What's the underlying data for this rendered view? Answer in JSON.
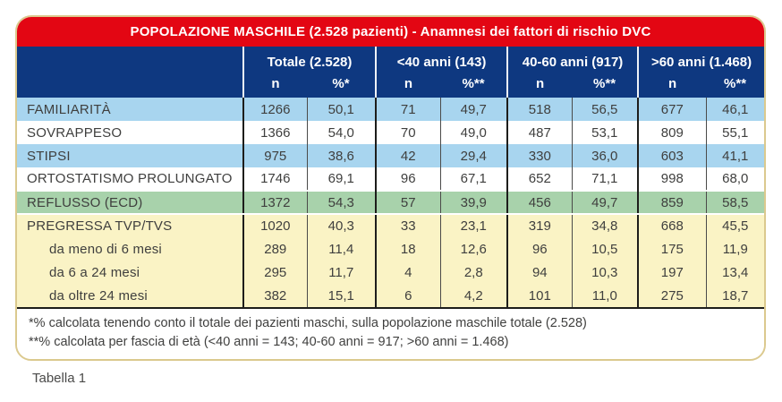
{
  "title_bar": {
    "text": "POPOLAZIONE MASCHILE (2.528 pazienti) - Anamnesi dei fattori di rischio DVC"
  },
  "table": {
    "column_groups": [
      {
        "label": "Totale (2.528)",
        "sub": [
          "n",
          "%*"
        ]
      },
      {
        "label": "<40 anni (143)",
        "sub": [
          "n",
          "%**"
        ]
      },
      {
        "label": "40-60 anni (917)",
        "sub": [
          "n",
          "%**"
        ]
      },
      {
        "label": ">60 anni (1.468)",
        "sub": [
          "n",
          "%**"
        ]
      }
    ],
    "rows": [
      {
        "label": "FAMILIARITÀ",
        "indent": false,
        "style": "blue",
        "values": [
          "1266",
          "50,1",
          "71",
          "49,7",
          "518",
          "56,5",
          "677",
          "46,1"
        ]
      },
      {
        "label": "SOVRAPPESO",
        "indent": false,
        "style": "white",
        "values": [
          "1366",
          "54,0",
          "70",
          "49,0",
          "487",
          "53,1",
          "809",
          "55,1"
        ]
      },
      {
        "label": "STIPSI",
        "indent": false,
        "style": "blue",
        "values": [
          "975",
          "38,6",
          "42",
          "29,4",
          "330",
          "36,0",
          "603",
          "41,1"
        ]
      },
      {
        "label": "ORTOSTATISMO PROLUNGATO",
        "indent": false,
        "style": "white",
        "values": [
          "1746",
          "69,1",
          "96",
          "67,1",
          "652",
          "71,1",
          "998",
          "68,0"
        ]
      },
      {
        "label": "REFLUSSO (ECD)",
        "indent": false,
        "style": "green",
        "values": [
          "1372",
          "54,3",
          "57",
          "39,9",
          "456",
          "49,7",
          "859",
          "58,5"
        ]
      },
      {
        "label": "PREGRESSA TVP/TVS",
        "indent": false,
        "style": "yellow",
        "values": [
          "1020",
          "40,3",
          "33",
          "23,1",
          "319",
          "34,8",
          "668",
          "45,5"
        ]
      },
      {
        "label": "da meno di 6 mesi",
        "indent": true,
        "style": "yellow",
        "values": [
          "289",
          "11,4",
          "18",
          "12,6",
          "96",
          "10,5",
          "175",
          "11,9"
        ]
      },
      {
        "label": "da 6 a 24 mesi",
        "indent": true,
        "style": "yellow",
        "values": [
          "295",
          "11,7",
          "4",
          "2,8",
          "94",
          "10,3",
          "197",
          "13,4"
        ]
      },
      {
        "label": "da oltre 24 mesi",
        "indent": true,
        "style": "yellow",
        "values": [
          "382",
          "15,1",
          "6",
          "4,2",
          "101",
          "11,0",
          "275",
          "18,7"
        ]
      }
    ]
  },
  "footnotes": [
    "*% calcolata tenendo conto il totale dei pazienti maschi, sulla popolazione maschile totale (2.528)",
    "**% calcolata per fascia di età (<40 anni = 143; 40-60 anni = 917; >60 anni = 1.468)"
  ],
  "caption": "Tabella 1",
  "colors": {
    "title_bar_red": "#e30613",
    "header_blue": "#0e3880",
    "row_blue": "#a8d5ef",
    "row_green": "#a8d2ab",
    "row_yellow": "#faf3c5",
    "card_border_tan": "#dbc98e",
    "text_gray": "#3f3f3e",
    "line_black": "#1d1d1b"
  }
}
